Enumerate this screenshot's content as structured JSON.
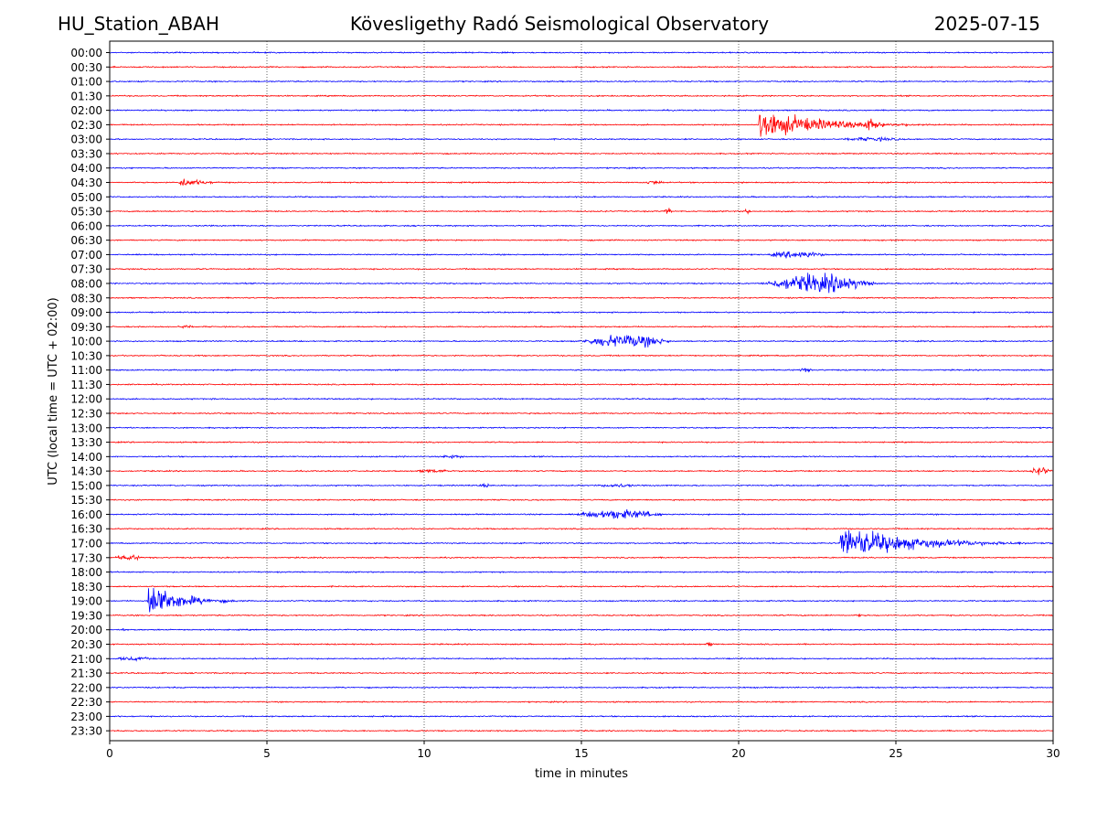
{
  "header": {
    "station": "HU_Station_ABAH",
    "observatory": "Kövesligethy Radó Seismological Observatory",
    "date": "2025-07-15"
  },
  "chart_data": {
    "type": "line",
    "title": "Kövesligethy Radó Seismological Observatory",
    "xlabel": "time in minutes",
    "ylabel": "UTC (local time = UTC + 02:00)",
    "xlim": [
      0,
      30
    ],
    "xticks": [
      0,
      5,
      10,
      15,
      20,
      25,
      30
    ],
    "grid": "vertical dotted lines at 5-minute intervals",
    "row_labels": [
      "00:00",
      "00:30",
      "01:00",
      "01:30",
      "02:00",
      "02:30",
      "03:00",
      "03:30",
      "04:00",
      "04:30",
      "05:00",
      "05:30",
      "06:00",
      "06:30",
      "07:00",
      "07:30",
      "08:00",
      "08:30",
      "09:00",
      "09:30",
      "10:00",
      "10:30",
      "11:00",
      "11:30",
      "12:00",
      "12:30",
      "13:00",
      "13:30",
      "14:00",
      "14:30",
      "15:00",
      "15:30",
      "16:00",
      "16:30",
      "17:00",
      "17:30",
      "18:00",
      "18:30",
      "19:00",
      "19:30",
      "20:00",
      "20:30",
      "21:00",
      "21:30",
      "22:00",
      "22:30",
      "23:00",
      "23:30"
    ],
    "colors": {
      "even_rows": "#0000ff",
      "odd_rows": "#ff0000"
    },
    "events": [
      {
        "row": "02:30",
        "start": 20.6,
        "end": 26.5,
        "amplitude": 24,
        "kind": "quake"
      },
      {
        "row": "02:30",
        "start": 23.8,
        "end": 24.6,
        "amplitude": 10,
        "kind": "burst"
      },
      {
        "row": "03:00",
        "start": 23.0,
        "end": 25.5,
        "amplitude": 3,
        "kind": "burst"
      },
      {
        "row": "04:30",
        "start": 2.2,
        "end": 4.5,
        "amplitude": 8,
        "kind": "quake"
      },
      {
        "row": "04:30",
        "start": 16.8,
        "end": 17.8,
        "amplitude": 3,
        "kind": "burst"
      },
      {
        "row": "05:30",
        "start": 17.6,
        "end": 17.9,
        "amplitude": 5,
        "kind": "burst"
      },
      {
        "row": "05:30",
        "start": 20.1,
        "end": 20.4,
        "amplitude": 4,
        "kind": "burst"
      },
      {
        "row": "07:00",
        "start": 20.7,
        "end": 23.0,
        "amplitude": 5,
        "kind": "burst"
      },
      {
        "row": "08:00",
        "start": 20.6,
        "end": 24.5,
        "amplitude": 14,
        "kind": "burst"
      },
      {
        "row": "09:30",
        "start": 2.1,
        "end": 2.7,
        "amplitude": 3,
        "kind": "burst"
      },
      {
        "row": "10:00",
        "start": 14.8,
        "end": 18.0,
        "amplitude": 10,
        "kind": "burst"
      },
      {
        "row": "11:00",
        "start": 21.8,
        "end": 22.4,
        "amplitude": 3,
        "kind": "burst"
      },
      {
        "row": "14:00",
        "start": 10.4,
        "end": 11.4,
        "amplitude": 3,
        "kind": "burst"
      },
      {
        "row": "14:30",
        "start": 9.6,
        "end": 11.0,
        "amplitude": 3,
        "kind": "burst"
      },
      {
        "row": "14:30",
        "start": 29.2,
        "end": 30.0,
        "amplitude": 6,
        "kind": "burst"
      },
      {
        "row": "15:00",
        "start": 11.7,
        "end": 12.2,
        "amplitude": 3,
        "kind": "burst"
      },
      {
        "row": "15:00",
        "start": 15.4,
        "end": 16.9,
        "amplitude": 3,
        "kind": "burst"
      },
      {
        "row": "16:00",
        "start": 14.6,
        "end": 17.8,
        "amplitude": 7,
        "kind": "burst"
      },
      {
        "row": "17:00",
        "start": 23.2,
        "end": 30.0,
        "amplitude": 27,
        "kind": "quake"
      },
      {
        "row": "17:30",
        "start": 0.0,
        "end": 1.2,
        "amplitude": 4,
        "kind": "burst"
      },
      {
        "row": "19:00",
        "start": 1.2,
        "end": 4.2,
        "amplitude": 32,
        "kind": "quake"
      },
      {
        "row": "19:30",
        "start": 23.8,
        "end": 23.9,
        "amplitude": 6,
        "kind": "burst"
      },
      {
        "row": "20:00",
        "start": 0.4,
        "end": 0.5,
        "amplitude": 4,
        "kind": "burst"
      },
      {
        "row": "20:30",
        "start": 18.9,
        "end": 19.3,
        "amplitude": 3,
        "kind": "burst"
      },
      {
        "row": "21:00",
        "start": 0.0,
        "end": 1.5,
        "amplitude": 3,
        "kind": "burst"
      }
    ]
  }
}
